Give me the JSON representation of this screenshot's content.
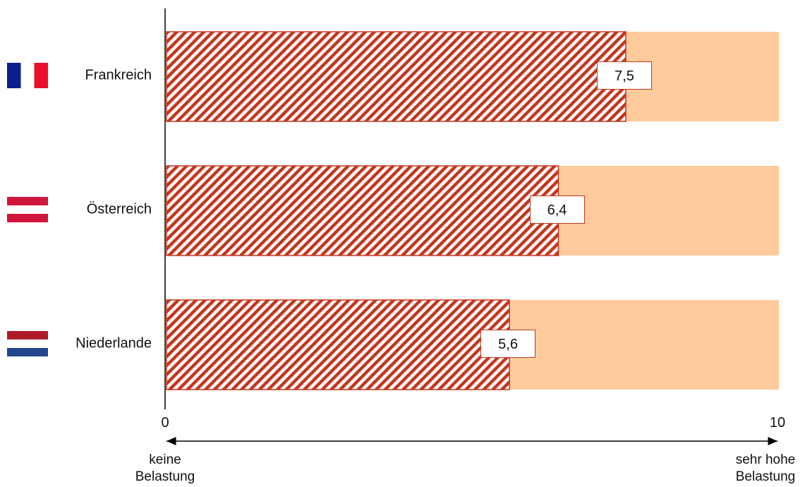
{
  "chart_data": {
    "type": "bar",
    "orientation": "horizontal",
    "categories": [
      "Frankreich",
      "Österreich",
      "Niederlande"
    ],
    "values": [
      7.5,
      6.4,
      5.6
    ],
    "value_labels": [
      "7,5",
      "6,4",
      "5,6"
    ],
    "xlim": [
      0,
      10
    ],
    "x_tick_labels": [
      "0",
      "10"
    ],
    "scale_min_label": "keine\nBelastung",
    "scale_max_label": "sehr hohe\nBelastung",
    "grid": false,
    "colors": {
      "bar_fill": "#c4361f",
      "bar_background": "#ffcb9c",
      "label_border": "#c4361f"
    },
    "flags": [
      {
        "country": "Frankreich",
        "icon": "france-flag-icon",
        "colors": [
          "#0a1e8c",
          "#ffffff",
          "#e8102a"
        ]
      },
      {
        "country": "Österreich",
        "icon": "austria-flag-icon",
        "colors": [
          "#d0163c",
          "#ffffff",
          "#d0163c"
        ]
      },
      {
        "country": "Niederlande",
        "icon": "netherlands-flag-icon",
        "colors": [
          "#ae1c28",
          "#ffffff",
          "#21468b"
        ]
      }
    ]
  }
}
